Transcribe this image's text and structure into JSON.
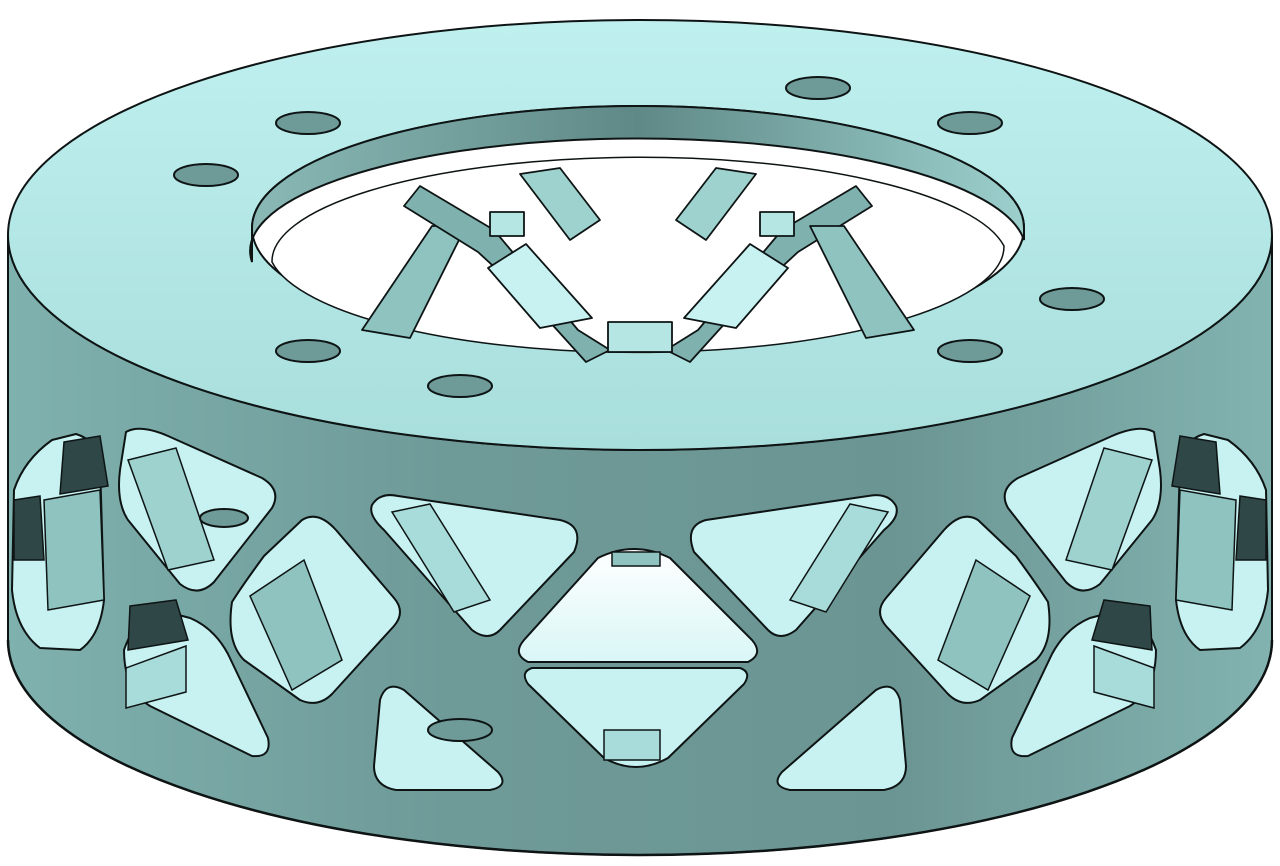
{
  "scene": {
    "subject": "cad-lattice-ring",
    "colors": {
      "background": "#ffffff",
      "face_light": "#c4f0f0",
      "face_mid": "#a4d8d6",
      "side_dark": "#6e9a98",
      "side_shade": "#587f7d",
      "cavity_dark": "#2f4746",
      "edge": "#0e1414"
    },
    "bolt_holes_top": 8,
    "lattice_columns": 6
  }
}
